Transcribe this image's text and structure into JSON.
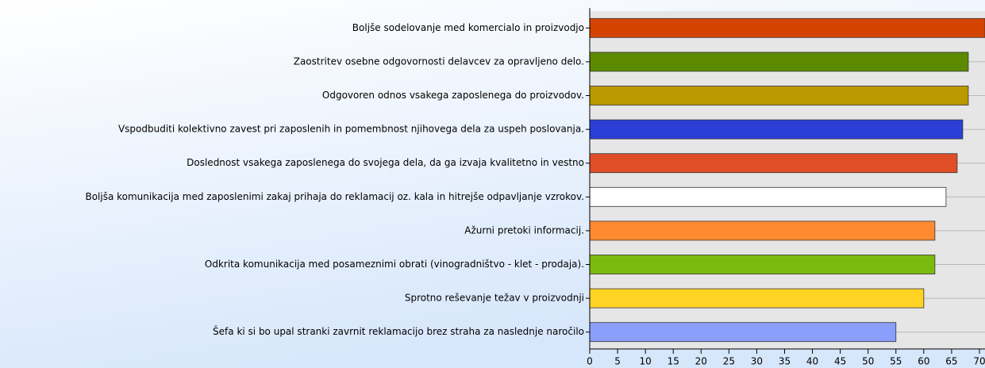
{
  "chart_data": {
    "type": "bar",
    "categories": [
      "Boljše sodelovanje med komercialo in proizvodjo",
      "Zaostritev osebne odgovornosti delavcev za opravljeno delo.",
      "Odgovoren odnos vsakega zaposlenega do proizvodov.",
      "Vspodbuditi kolektivno zavest pri zaposlenih in pomembnost njihovega dela za uspeh poslovanja.",
      "Doslednost vsakega zaposlenega do svojega dela, da ga izvaja kvalitetno in vestno",
      "Boljša komunikacija med zaposlenimi zakaj prihaja do reklamacij oz. kala in hitrejše odpavljanje vzrokov.",
      "Ažurni pretoki informacij.",
      "Odkrita komunikacija med posameznimi obrati (vinogradništvo - klet - prodaja).",
      "Sprotno reševanje težav v proizvodnji",
      "Šefa ki si bo upal stranki zavrnit reklamacijo brez straha za naslednje naročilo"
    ],
    "values": [
      71,
      68,
      68,
      67,
      66,
      64,
      62,
      62,
      60,
      55
    ],
    "colors": [
      "#d44400",
      "#5b8a00",
      "#bb9900",
      "#2b3fd6",
      "#e04e28",
      "#ffffff",
      "#ff8a30",
      "#7aba10",
      "#ffd324",
      "#8a9ffc"
    ],
    "xlim": [
      0,
      71
    ],
    "xticks": [
      0,
      5,
      10,
      15,
      20,
      25,
      30,
      35,
      40,
      45,
      50,
      55,
      60,
      65,
      70
    ],
    "grid": true
  }
}
